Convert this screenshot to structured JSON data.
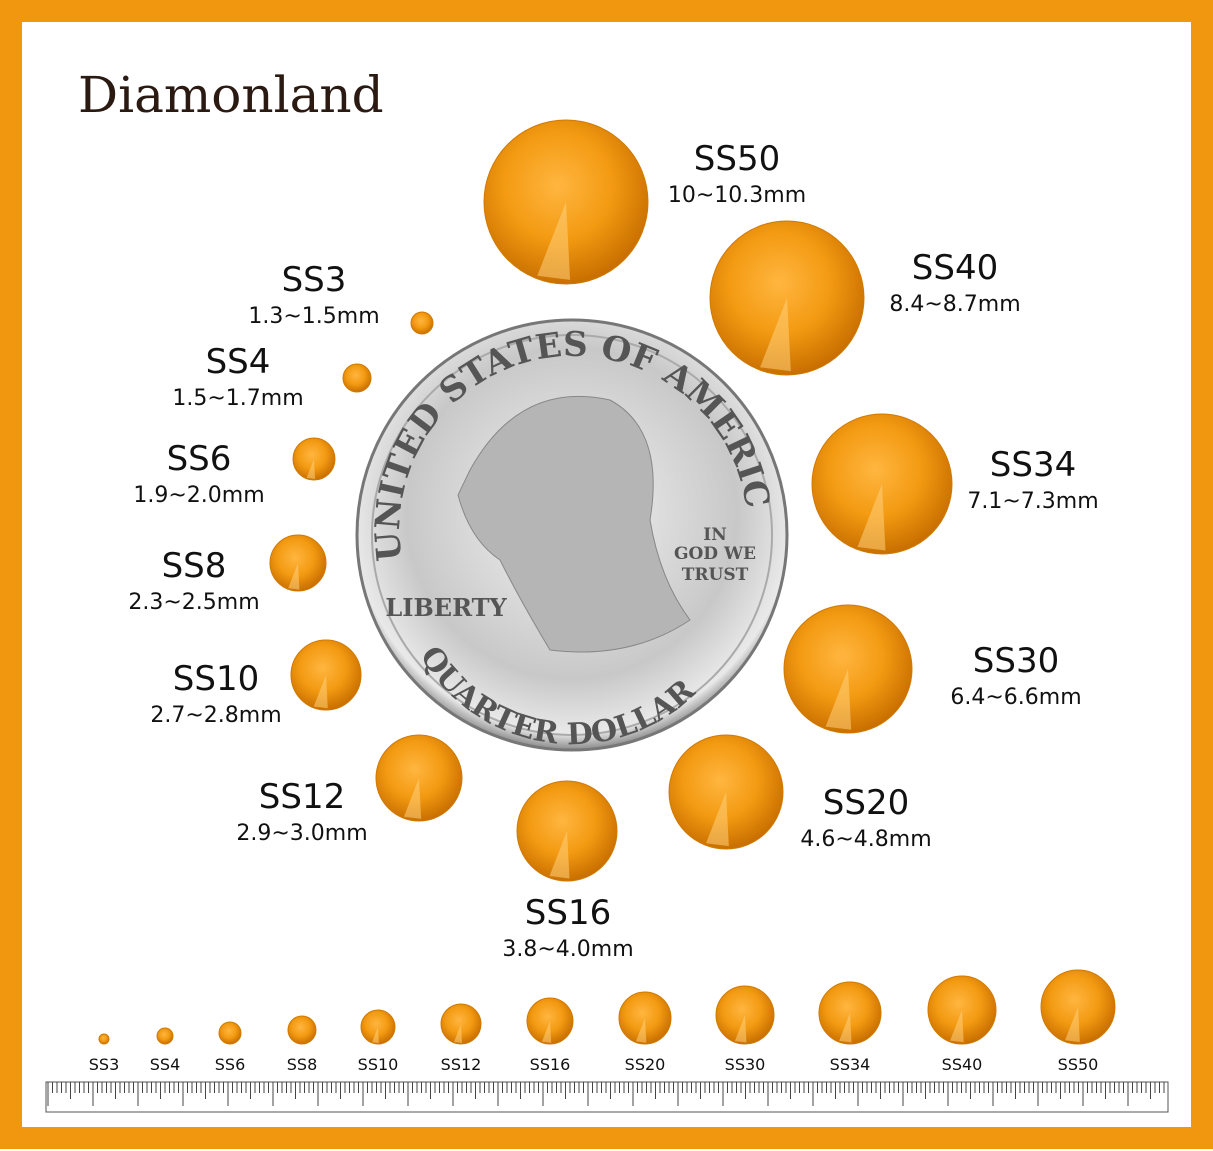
{
  "brand": "Diamonland",
  "sizes": [
    {
      "name": "SS3",
      "range": "1.3~1.5mm"
    },
    {
      "name": "SS4",
      "range": "1.5~1.7mm"
    },
    {
      "name": "SS6",
      "range": "1.9~2.0mm"
    },
    {
      "name": "SS8",
      "range": "2.3~2.5mm"
    },
    {
      "name": "SS10",
      "range": "2.7~2.8mm"
    },
    {
      "name": "SS12",
      "range": "2.9~3.0mm"
    },
    {
      "name": "SS16",
      "range": "3.8~4.0mm"
    },
    {
      "name": "SS20",
      "range": "4.6~4.8mm"
    },
    {
      "name": "SS30",
      "range": "6.4~6.6mm"
    },
    {
      "name": "SS34",
      "range": "7.1~7.3mm"
    },
    {
      "name": "SS40",
      "range": "8.4~8.7mm"
    },
    {
      "name": "SS50",
      "range": "10~10.3mm"
    }
  ],
  "row": [
    "SS3",
    "SS4",
    "SS6",
    "SS8",
    "SS10",
    "SS12",
    "SS16",
    "SS20",
    "SS30",
    "SS34",
    "SS40",
    "SS50"
  ],
  "coin": {
    "top": "UNITED STATES OF AMERICA",
    "bottom": "QUARTER DOLLAR",
    "left": "LIBERTY",
    "motto": [
      "IN",
      "GOD WE",
      "TRUST"
    ]
  }
}
